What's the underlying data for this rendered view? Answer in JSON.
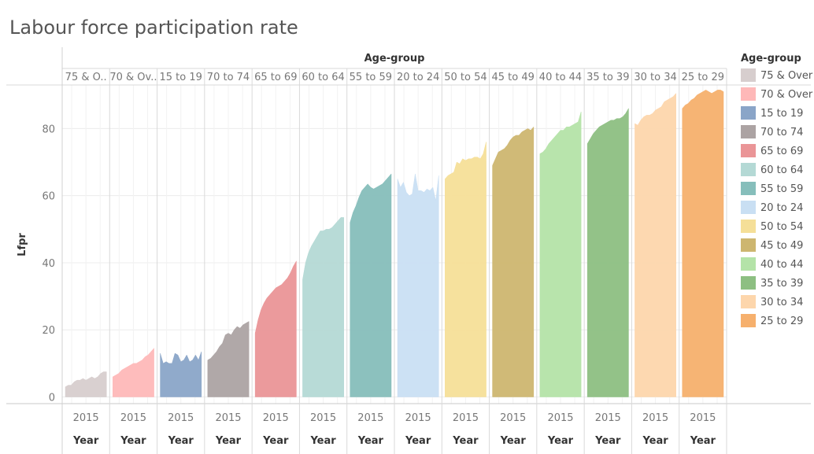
{
  "title": "Labour force participation rate",
  "header_label": "Age-group",
  "legend_title": "Age-group",
  "year_tick": "2015",
  "year_label": "Year",
  "ylabel": "Lfpr",
  "chart_data": {
    "type": "area",
    "title": "Labour force participation rate",
    "xlabel": "Year",
    "ylabel": "Lfpr",
    "column_header": "Age-group",
    "ylim": [
      -2,
      93
    ],
    "yticks": [
      0,
      20,
      40,
      60,
      80
    ],
    "grid": true,
    "legend_position": "right",
    "series": [
      {
        "name": "75 & Over",
        "header_label": "75 & O..",
        "color": "#d7cece",
        "values": [
          3,
          3.5,
          3.5,
          4.5,
          5,
          5,
          5.5,
          5,
          5.5,
          6,
          5.5,
          6,
          7,
          7.5,
          7.5
        ]
      },
      {
        "name": "70 & Over",
        "header_label": "70 & Ov..",
        "color": "#feb8b8",
        "values": [
          6,
          6.5,
          7,
          8,
          8.5,
          9,
          9.5,
          10,
          10,
          10.5,
          11,
          12,
          12.5,
          13.5,
          14.5
        ]
      },
      {
        "name": "15 to 19",
        "header_label": "15 to 19",
        "color": "#8aa5c8",
        "values": [
          13,
          10,
          10.5,
          10,
          10,
          13,
          12.5,
          10.5,
          11,
          12.5,
          10.5,
          11,
          12.5,
          11,
          13.5
        ]
      },
      {
        "name": "70 to 74",
        "header_label": "70 to 74",
        "color": "#aca3a3",
        "values": [
          11,
          11.5,
          12.5,
          13.5,
          15,
          16,
          18.5,
          19,
          18.5,
          20,
          21,
          20.5,
          21.5,
          22,
          22.5
        ]
      },
      {
        "name": "65 to 69",
        "header_label": "65 to 69",
        "color": "#ea9597",
        "values": [
          19,
          23,
          26,
          28,
          29.5,
          30.5,
          31.5,
          32.5,
          33,
          33.5,
          34.5,
          35.5,
          37,
          39,
          40.5
        ]
      },
      {
        "name": "60 to 64",
        "header_label": "60 to 64",
        "color": "#b4d9d5",
        "values": [
          35,
          40,
          43,
          45,
          46.5,
          48,
          49.5,
          49.5,
          50,
          50,
          50.5,
          51.5,
          52.5,
          53.5,
          53.5
        ]
      },
      {
        "name": "55 to 59",
        "header_label": "55 to 59",
        "color": "#86bebb",
        "values": [
          52,
          55,
          57,
          59.5,
          61.5,
          62.5,
          63.5,
          62.5,
          62,
          62.5,
          63,
          63.5,
          64.5,
          65.5,
          66.5
        ]
      },
      {
        "name": "20 to 24",
        "header_label": "20 to 24",
        "color": "#c9dff3",
        "values": [
          65,
          62.5,
          64,
          61,
          60,
          60.5,
          66.5,
          61.5,
          61.5,
          61,
          62,
          61.5,
          62.5,
          58.5,
          66
        ]
      },
      {
        "name": "50 to 54",
        "header_label": "50 to 54",
        "color": "#f5df98",
        "values": [
          65,
          66,
          66.5,
          67,
          70,
          69.5,
          71,
          70.5,
          71,
          71,
          71.5,
          71.5,
          71,
          72.5,
          76
        ]
      },
      {
        "name": "45 to 49",
        "header_label": "45 to 49",
        "color": "#cdb670",
        "values": [
          69,
          71,
          73,
          73.5,
          74,
          75,
          76.5,
          77.5,
          78,
          78,
          79,
          79.5,
          80,
          79.5,
          80.5
        ]
      },
      {
        "name": "40 to 44",
        "header_label": "40 to 44",
        "color": "#b4e3a8",
        "values": [
          72.5,
          73,
          74,
          75.5,
          76.5,
          77.5,
          78.5,
          79.5,
          79.5,
          80.5,
          80.5,
          81,
          81.5,
          82,
          85
        ]
      },
      {
        "name": "35 to 39",
        "header_label": "35 to 39",
        "color": "#8dbf82",
        "values": [
          75.5,
          77,
          78.5,
          79.5,
          80.5,
          81,
          81.5,
          82,
          82.5,
          82.5,
          83,
          83,
          83.5,
          84.5,
          86
        ]
      },
      {
        "name": "30 to 34",
        "header_label": "30 to 34",
        "color": "#fdd6ac",
        "values": [
          81.5,
          81,
          82.5,
          83.5,
          84,
          84,
          84.5,
          85.5,
          86,
          86.5,
          88,
          88.5,
          89,
          89.5,
          90.5
        ]
      },
      {
        "name": "25 to 29",
        "header_label": "25 to 29",
        "color": "#f6b06d",
        "values": [
          86,
          87,
          87.5,
          88.5,
          89,
          90,
          90.5,
          91,
          91.5,
          91,
          90.5,
          91,
          91.5,
          91.5,
          91
        ]
      }
    ]
  }
}
